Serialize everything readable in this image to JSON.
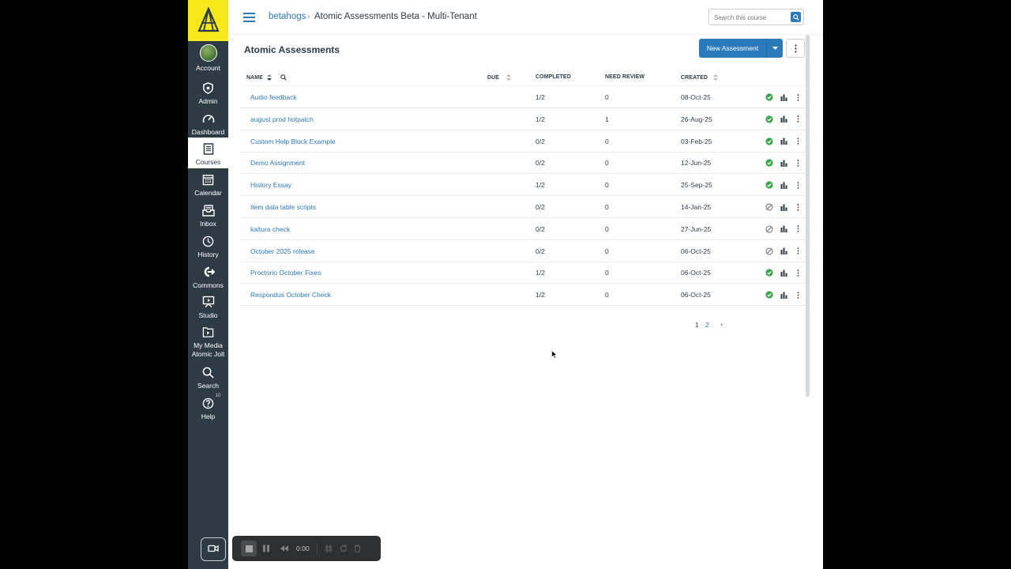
{
  "nav": {
    "items": [
      {
        "label": "Account",
        "icon": "avatar"
      },
      {
        "label": "Admin",
        "icon": "admin-shield-icon"
      },
      {
        "label": "Dashboard",
        "icon": "dashboard-gauge-icon"
      },
      {
        "label": "Courses",
        "icon": "courses-book-icon",
        "active": true
      },
      {
        "label": "Calendar",
        "icon": "calendar-icon"
      },
      {
        "label": "Inbox",
        "icon": "inbox-icon"
      },
      {
        "label": "History",
        "icon": "history-clock-icon"
      },
      {
        "label": "Commons",
        "icon": "commons-icon"
      },
      {
        "label": "Studio",
        "icon": "studio-icon"
      },
      {
        "label": "My Media\nAtomic Jolt",
        "icon": "media-folder-icon"
      },
      {
        "label": "Search",
        "icon": "search-icon"
      },
      {
        "label": "Help",
        "icon": "help-icon",
        "badge": "10"
      }
    ]
  },
  "header": {
    "breadcrumb_root": "betahogs",
    "breadcrumb_sep": "›",
    "breadcrumb_current": "Atomic Assessments Beta - Multi-Tenant",
    "search_placeholder": "Search this course"
  },
  "main": {
    "title": "Atomic Assessments",
    "new_button": "New Assessment",
    "columns": {
      "name": "NAME",
      "due": "DUE",
      "completed": "COMPLETED",
      "review": "NEED REVIEW",
      "created": "CREATED"
    },
    "rows": [
      {
        "name": "Audio feedback",
        "due": "",
        "completed": "1/2",
        "review": "0",
        "created": "08-Oct-25",
        "status": "published"
      },
      {
        "name": "august prod hotpatch",
        "due": "",
        "completed": "1/2",
        "review": "1",
        "created": "26-Aug-25",
        "status": "published"
      },
      {
        "name": "Custom Help Block Example",
        "due": "",
        "completed": "0/2",
        "review": "0",
        "created": "03-Feb-25",
        "status": "published"
      },
      {
        "name": "Demo Assignment",
        "due": "",
        "completed": "0/2",
        "review": "0",
        "created": "12-Jun-25",
        "status": "published"
      },
      {
        "name": "History Essay",
        "due": "",
        "completed": "1/2",
        "review": "0",
        "created": "25-Sep-25",
        "status": "published"
      },
      {
        "name": "Item data table scripts",
        "due": "",
        "completed": "0/2",
        "review": "0",
        "created": "14-Jan-25",
        "status": "unpublished"
      },
      {
        "name": "kaltura check",
        "due": "",
        "completed": "0/2",
        "review": "0",
        "created": "27-Jun-25",
        "status": "unpublished"
      },
      {
        "name": "October 2025 release",
        "due": "",
        "completed": "0/2",
        "review": "0",
        "created": "06-Oct-25",
        "status": "unpublished"
      },
      {
        "name": "Proctorio October Fixes",
        "due": "",
        "completed": "1/2",
        "review": "0",
        "created": "06-Oct-25",
        "status": "published"
      },
      {
        "name": "Respondus October Check",
        "due": "",
        "completed": "1/2",
        "review": "0",
        "created": "06-Oct-25",
        "status": "published"
      }
    ],
    "pagination": {
      "current": "1",
      "next_page": "2",
      "next_arrow": "›"
    }
  },
  "recorder": {
    "time": "0:00"
  },
  "colors": {
    "nav_bg": "#2d3b45",
    "logo_bg": "#f7e81c",
    "accent": "#2b7abc",
    "published": "#3aa64a",
    "unpublished": "#6b7780"
  }
}
